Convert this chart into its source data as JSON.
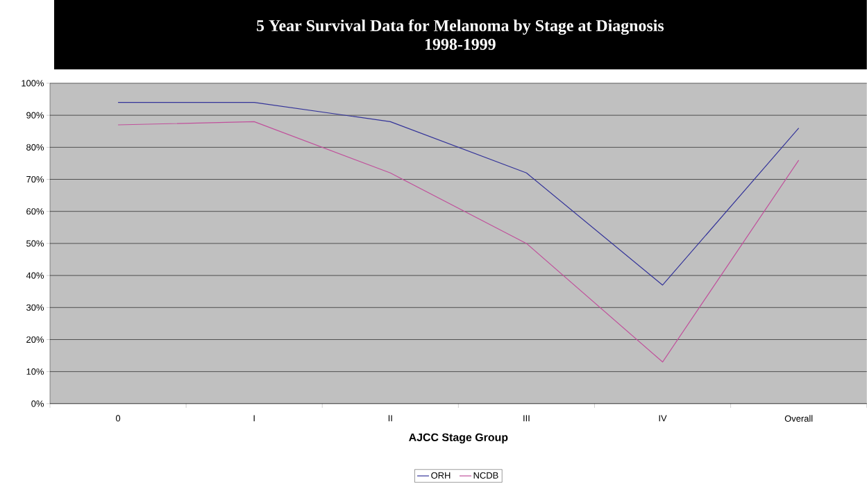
{
  "chart_data": {
    "type": "line",
    "title": "5 Year Survival Data for Melanoma by Stage at Diagnosis",
    "subtitle": "1998-1999",
    "xlabel": "AJCC Stage Group",
    "categories": [
      "0",
      "I",
      "II",
      "III",
      "IV",
      "Overall"
    ],
    "series": [
      {
        "name": "ORH",
        "color": "#333399",
        "values": [
          94,
          94,
          88,
          72,
          37,
          86
        ]
      },
      {
        "name": "NCDB",
        "color": "#c0509b",
        "values": [
          87,
          88,
          72,
          50,
          13,
          76
        ]
      }
    ],
    "ylim": [
      0,
      100
    ],
    "yticks": [
      {
        "value": 0,
        "label": "0%"
      },
      {
        "value": 10,
        "label": "10%"
      },
      {
        "value": 20,
        "label": "20%"
      },
      {
        "value": 30,
        "label": "30%"
      },
      {
        "value": 40,
        "label": "40%"
      },
      {
        "value": 50,
        "label": "50%"
      },
      {
        "value": 60,
        "label": "60%"
      },
      {
        "value": 70,
        "label": "70%"
      },
      {
        "value": 80,
        "label": "80%"
      },
      {
        "value": 90,
        "label": "90%"
      },
      {
        "value": 100,
        "label": "100%"
      }
    ],
    "grid": "y",
    "legend": "bottom"
  }
}
